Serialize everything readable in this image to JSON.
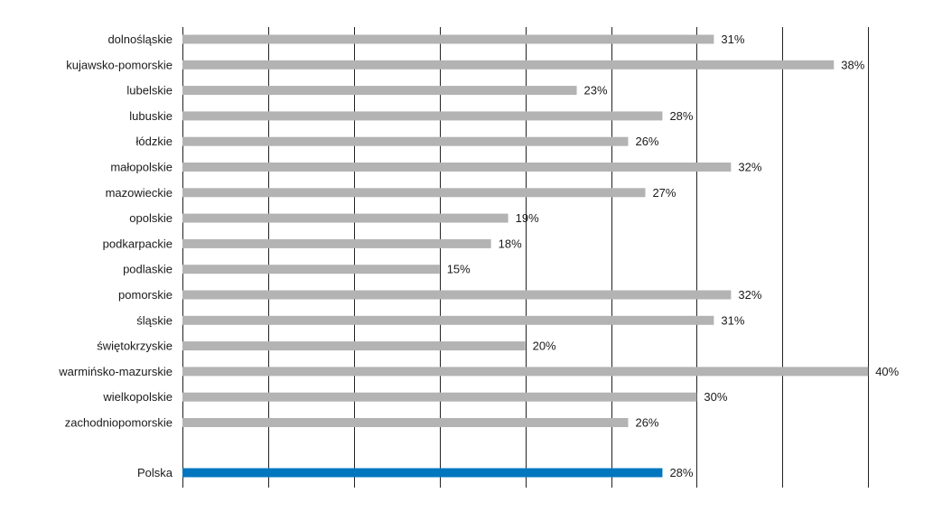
{
  "chart_data": {
    "type": "bar",
    "orientation": "horizontal",
    "categories": [
      "dolnośląskie",
      "kujawsko-pomorskie",
      "lubelskie",
      "lubuskie",
      "łódzkie",
      "małopolskie",
      "mazowieckie",
      "opolskie",
      "podkarpackie",
      "podlaskie",
      "pomorskie",
      "śląskie",
      "świętokrzyskie",
      "warmińsko-mazurskie",
      "wielkopolskie",
      "zachodniopomorskie",
      "Polska"
    ],
    "values": [
      31,
      38,
      23,
      28,
      26,
      32,
      27,
      19,
      18,
      15,
      32,
      31,
      20,
      40,
      30,
      26,
      28
    ],
    "value_labels": [
      "31%",
      "38%",
      "23%",
      "28%",
      "26%",
      "32%",
      "27%",
      "19%",
      "18%",
      "15%",
      "32%",
      "31%",
      "20%",
      "40%",
      "30%",
      "26%",
      "28%"
    ],
    "unit": "%",
    "xlim": [
      0,
      40
    ],
    "grid_step": 5,
    "grid": true,
    "title": "",
    "xlabel": "",
    "ylabel": "",
    "colors": {
      "default_bar": "#b3b3b3",
      "highlight_bar": "#0076bf",
      "gridline": "#222222",
      "text": "#1a1a1a"
    },
    "highlight_category": "Polska"
  }
}
